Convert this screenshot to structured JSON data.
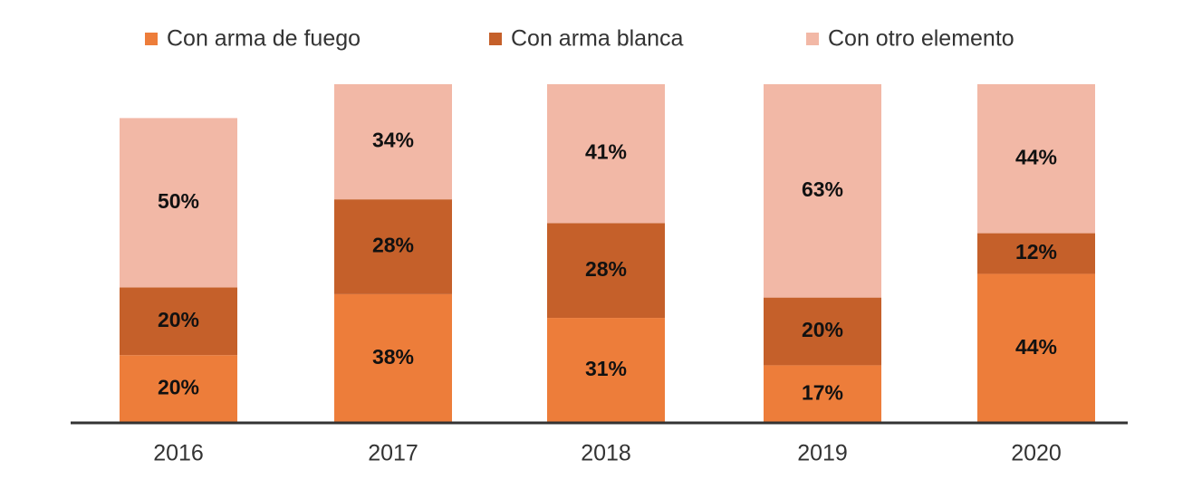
{
  "chart_data": {
    "type": "stacked_bar",
    "categories": [
      "2016",
      "2017",
      "2018",
      "2019",
      "2020"
    ],
    "series": [
      {
        "name": "Con arma de fuego",
        "color": "#ed7d3a",
        "values": [
          20,
          38,
          31,
          17,
          44
        ],
        "value_labels": [
          "20%",
          "38%",
          "31%",
          "17%",
          "44%"
        ]
      },
      {
        "name": "Con arma blanca",
        "color": "#c5602a",
        "values": [
          20,
          28,
          28,
          20,
          12
        ],
        "value_labels": [
          "20%",
          "28%",
          "28%",
          "20%",
          "12%"
        ]
      },
      {
        "name": "Con otro elemento",
        "color": "#f2b8a6",
        "values": [
          50,
          34,
          41,
          63,
          44
        ],
        "value_labels": [
          "50%",
          "34%",
          "41%",
          "63%",
          "44%"
        ]
      }
    ],
    "ylim": [
      0,
      100
    ],
    "legend": "top"
  }
}
